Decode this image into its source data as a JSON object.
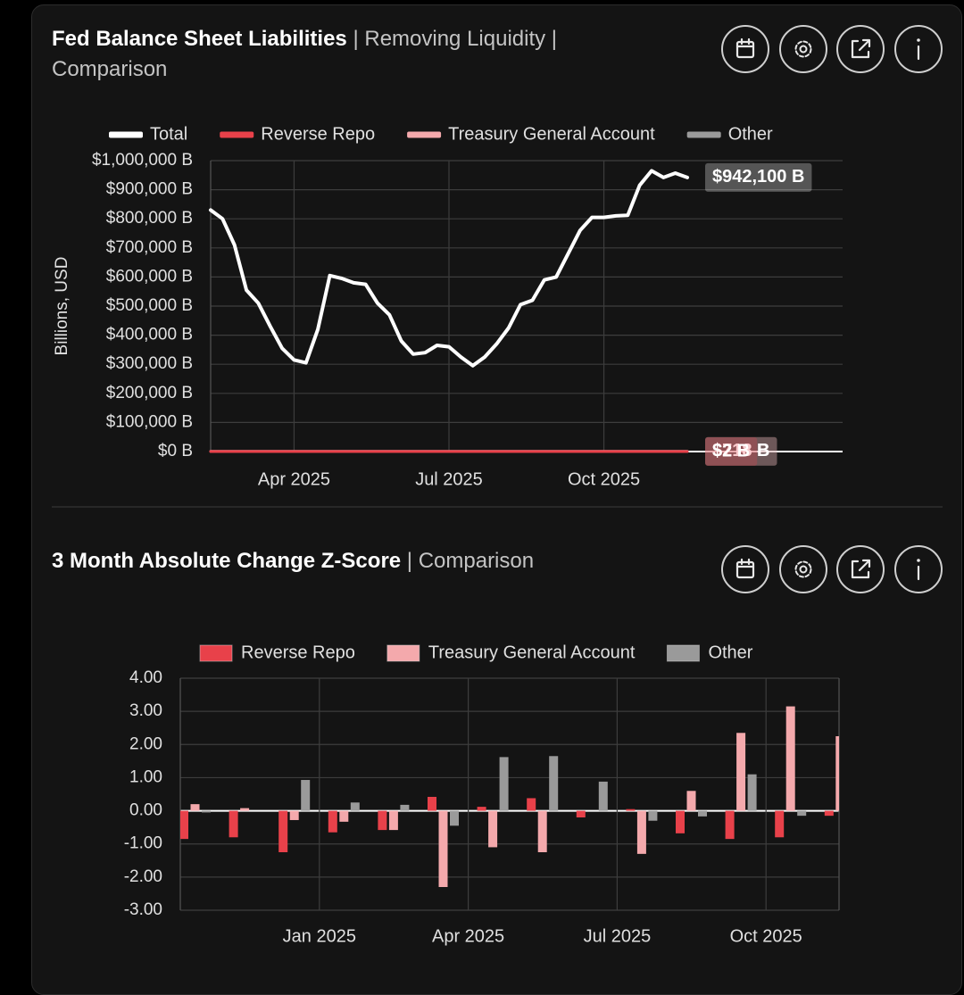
{
  "chart_data": [
    {
      "type": "line",
      "title": "Fed Balance Sheet Liabilities",
      "subtitle": "| Removing Liquidity | Comparison",
      "ylabel": "Billions, USD",
      "categories": [
        null,
        null,
        null,
        null,
        null,
        null,
        null,
        "Apr 2025",
        null,
        null,
        null,
        null,
        null,
        null,
        null,
        null,
        null,
        null,
        null,
        null,
        "Jul 2025",
        null,
        null,
        null,
        null,
        null,
        null,
        null,
        null,
        null,
        null,
        null,
        null,
        "Oct 2025",
        null,
        null,
        null,
        null,
        null,
        null,
        null
      ],
      "series": [
        {
          "name": "Total",
          "color": "#ffffff",
          "values": [
            830000,
            800000,
            710000,
            555000,
            510000,
            430000,
            355000,
            315000,
            305000,
            420000,
            605000,
            595000,
            580000,
            575000,
            510000,
            470000,
            380000,
            335000,
            340000,
            365000,
            360000,
            325000,
            295000,
            325000,
            370000,
            425000,
            505000,
            520000,
            590000,
            600000,
            680000,
            760000,
            805000,
            805000,
            810000,
            812000,
            915000,
            965000,
            942000,
            957000,
            942100
          ],
          "value_labels": [
            null,
            null,
            null,
            null,
            null,
            null,
            null,
            null,
            null,
            null,
            null,
            null,
            null,
            null,
            null,
            null,
            null,
            null,
            null,
            null,
            null,
            null,
            null,
            null,
            null,
            null,
            null,
            null,
            null,
            null,
            null,
            null,
            null,
            null,
            null,
            null,
            null,
            null,
            null,
            null,
            "$942,100 B"
          ]
        },
        {
          "name": "Reverse Repo",
          "color": "#e8414a",
          "values": [
            2,
            2,
            2,
            2,
            2,
            2,
            2,
            2,
            2,
            2,
            2,
            2,
            2,
            2,
            2,
            2,
            2,
            2,
            2,
            2,
            2,
            2,
            2,
            2,
            2,
            2,
            2,
            2,
            2,
            2,
            2,
            2,
            2,
            2,
            2,
            2,
            2,
            2,
            2,
            2,
            2
          ],
          "value_labels": [
            null,
            null,
            null,
            null,
            null,
            null,
            null,
            null,
            null,
            null,
            null,
            null,
            null,
            null,
            null,
            null,
            null,
            null,
            null,
            null,
            null,
            null,
            null,
            null,
            null,
            null,
            null,
            null,
            null,
            null,
            null,
            null,
            null,
            null,
            null,
            null,
            null,
            null,
            null,
            null,
            "$2 B"
          ]
        },
        {
          "name": "Treasury General Account",
          "color": "#f4a9ac",
          "values": [
            718,
            718,
            718,
            718,
            718,
            718,
            718,
            718,
            718,
            718,
            718,
            718,
            718,
            718,
            718,
            718,
            718,
            718,
            718,
            718,
            718,
            718,
            718,
            718,
            718,
            718,
            718,
            718,
            718,
            718,
            718,
            718,
            718,
            718,
            718,
            718,
            718,
            718,
            718,
            718,
            718
          ],
          "value_labels": [
            null,
            null,
            null,
            null,
            null,
            null,
            null,
            null,
            null,
            null,
            null,
            null,
            null,
            null,
            null,
            null,
            null,
            null,
            null,
            null,
            null,
            null,
            null,
            null,
            null,
            null,
            null,
            null,
            null,
            null,
            null,
            null,
            null,
            null,
            null,
            null,
            null,
            null,
            null,
            null,
            "$718 B"
          ]
        },
        {
          "name": "Other",
          "color": "#9a9a9a",
          "values": [
            218,
            218,
            218,
            218,
            218,
            218,
            218,
            218,
            218,
            218,
            218,
            218,
            218,
            218,
            218,
            218,
            218,
            218,
            218,
            218,
            218,
            218,
            218,
            218,
            218,
            218,
            218,
            218,
            218,
            218,
            218,
            218,
            218,
            218,
            218,
            218,
            218,
            218,
            218,
            218,
            218
          ],
          "value_labels": [
            null,
            null,
            null,
            null,
            null,
            null,
            null,
            null,
            null,
            null,
            null,
            null,
            null,
            null,
            null,
            null,
            null,
            null,
            null,
            null,
            null,
            null,
            null,
            null,
            null,
            null,
            null,
            null,
            null,
            null,
            null,
            null,
            null,
            null,
            null,
            null,
            null,
            null,
            null,
            null,
            "$218 B"
          ]
        }
      ],
      "ylim": [
        0,
        1000000
      ],
      "yticks": [
        {
          "value": 0,
          "label": "$0 B"
        },
        {
          "value": 100000,
          "label": "$100,000 B"
        },
        {
          "value": 200000,
          "label": "$200,000 B"
        },
        {
          "value": 300000,
          "label": "$300,000 B"
        },
        {
          "value": 400000,
          "label": "$400,000 B"
        },
        {
          "value": 500000,
          "label": "$500,000 B"
        },
        {
          "value": 600000,
          "label": "$600,000 B"
        },
        {
          "value": 700000,
          "label": "$700,000 B"
        },
        {
          "value": 800000,
          "label": "$800,000 B"
        },
        {
          "value": 900000,
          "label": "$900,000 B"
        },
        {
          "value": 1000000,
          "label": "$1,000,000 B"
        }
      ],
      "grid": true,
      "legend": "top"
    },
    {
      "type": "bar",
      "title": "3 Month Absolute Change Z-Score",
      "subtitle": "| Comparison",
      "categories": [
        null,
        null,
        null,
        "Jan 2025",
        null,
        null,
        "Apr 2025",
        null,
        null,
        "Jul 2025",
        null,
        null,
        "Oct 2025",
        null
      ],
      "series": [
        {
          "name": "Reverse Repo",
          "color": "#e8414a",
          "values": [
            -0.85,
            -0.8,
            -1.25,
            -0.65,
            -0.58,
            0.42,
            0.12,
            0.38,
            -0.2,
            0.05,
            -0.68,
            -0.85,
            -0.8,
            -0.15
          ]
        },
        {
          "name": "Treasury General Account",
          "color": "#f4a9ac",
          "values": [
            0.2,
            0.08,
            -0.28,
            -0.33,
            -0.58,
            -2.3,
            -1.1,
            -1.25,
            0,
            -1.3,
            0.6,
            2.35,
            3.15,
            2.25
          ]
        },
        {
          "name": "Other",
          "color": "#9a9a9a",
          "values": [
            -0.05,
            0,
            0.93,
            0.25,
            0.18,
            -0.45,
            1.62,
            1.65,
            0.88,
            -0.3,
            -0.17,
            1.1,
            -0.15,
            null
          ]
        }
      ],
      "ylim": [
        -3,
        4
      ],
      "yticks": [
        {
          "value": -3,
          "label": "-3.00"
        },
        {
          "value": -2,
          "label": "-2.00"
        },
        {
          "value": -1,
          "label": "-1.00"
        },
        {
          "value": 0,
          "label": "0.00"
        },
        {
          "value": 1,
          "label": "1.00"
        },
        {
          "value": 2,
          "label": "2.00"
        },
        {
          "value": 3,
          "label": "3.00"
        },
        {
          "value": 4,
          "label": "4.00"
        }
      ],
      "grid": true,
      "legend": "top"
    }
  ]
}
